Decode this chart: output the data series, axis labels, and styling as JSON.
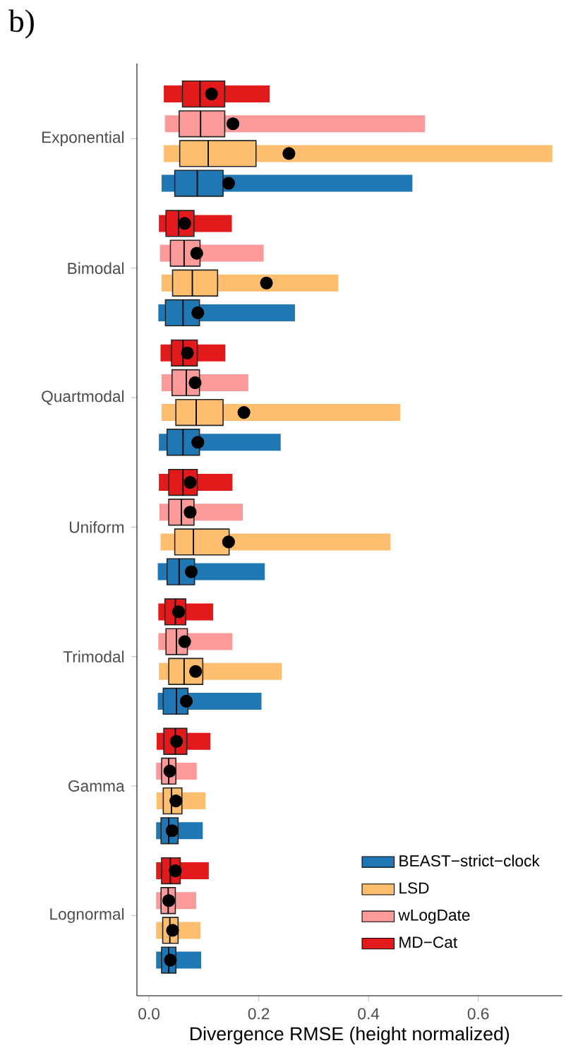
{
  "chart_data": {
    "type": "box",
    "orientation": "horizontal",
    "annotations": [
      "b)"
    ],
    "categories": [
      "Exponential",
      "Bimodal",
      "Quartmodal",
      "Uniform",
      "Trimodal",
      "Gamma",
      "Lognormal"
    ],
    "xlabel": "Divergence RMSE (height normalized)",
    "xlim": [
      -0.022,
      0.753
    ],
    "xticks": [
      {
        "value": 0,
        "label": "0.0"
      },
      {
        "value": 0.2,
        "label": "0.2"
      },
      {
        "value": 0.4,
        "label": "0.4"
      },
      {
        "value": 0.6,
        "label": "0.6"
      }
    ],
    "legend": "bottom right",
    "series": [
      {
        "name": "BEAST−strict−clock",
        "color": "#1f78b4",
        "boxes": [
          {
            "low": 0.023,
            "q1": 0.047,
            "median": 0.088,
            "q3": 0.135,
            "high": 0.48,
            "mean": 0.145
          },
          {
            "low": 0.017,
            "q1": 0.03,
            "median": 0.062,
            "q3": 0.092,
            "high": 0.266,
            "mean": 0.089
          },
          {
            "low": 0.018,
            "q1": 0.033,
            "median": 0.062,
            "q3": 0.092,
            "high": 0.24,
            "mean": 0.089
          },
          {
            "low": 0.016,
            "q1": 0.033,
            "median": 0.055,
            "q3": 0.083,
            "high": 0.211,
            "mean": 0.077
          },
          {
            "low": 0.016,
            "q1": 0.026,
            "median": 0.05,
            "q3": 0.071,
            "high": 0.205,
            "mean": 0.068
          },
          {
            "low": 0.013,
            "q1": 0.022,
            "median": 0.036,
            "q3": 0.053,
            "high": 0.098,
            "mean": 0.042
          },
          {
            "low": 0.013,
            "q1": 0.023,
            "median": 0.036,
            "q3": 0.049,
            "high": 0.095,
            "mean": 0.039
          }
        ]
      },
      {
        "name": "LSD",
        "color": "#fdbf6f",
        "boxes": [
          {
            "low": 0.027,
            "q1": 0.056,
            "median": 0.108,
            "q3": 0.195,
            "high": 0.735,
            "mean": 0.255
          },
          {
            "low": 0.023,
            "q1": 0.043,
            "median": 0.079,
            "q3": 0.125,
            "high": 0.345,
            "mean": 0.214
          },
          {
            "low": 0.023,
            "q1": 0.049,
            "median": 0.086,
            "q3": 0.135,
            "high": 0.458,
            "mean": 0.173
          },
          {
            "low": 0.021,
            "q1": 0.047,
            "median": 0.081,
            "q3": 0.146,
            "high": 0.44,
            "mean": 0.145
          },
          {
            "low": 0.018,
            "q1": 0.036,
            "median": 0.064,
            "q3": 0.098,
            "high": 0.242,
            "mean": 0.085
          },
          {
            "low": 0.014,
            "q1": 0.026,
            "median": 0.041,
            "q3": 0.06,
            "high": 0.103,
            "mean": 0.049
          },
          {
            "low": 0.013,
            "q1": 0.025,
            "median": 0.038,
            "q3": 0.053,
            "high": 0.094,
            "mean": 0.043
          }
        ]
      },
      {
        "name": "wLogDate",
        "color": "#fb9a99",
        "boxes": [
          {
            "low": 0.029,
            "q1": 0.055,
            "median": 0.094,
            "q3": 0.138,
            "high": 0.503,
            "mean": 0.153
          },
          {
            "low": 0.02,
            "q1": 0.039,
            "median": 0.064,
            "q3": 0.093,
            "high": 0.209,
            "mean": 0.087
          },
          {
            "low": 0.023,
            "q1": 0.042,
            "median": 0.068,
            "q3": 0.092,
            "high": 0.181,
            "mean": 0.084
          },
          {
            "low": 0.019,
            "q1": 0.036,
            "median": 0.059,
            "q3": 0.082,
            "high": 0.171,
            "mean": 0.075
          },
          {
            "low": 0.017,
            "q1": 0.031,
            "median": 0.05,
            "q3": 0.07,
            "high": 0.152,
            "mean": 0.065
          },
          {
            "low": 0.013,
            "q1": 0.023,
            "median": 0.036,
            "q3": 0.049,
            "high": 0.087,
            "mean": 0.038
          },
          {
            "low": 0.013,
            "q1": 0.022,
            "median": 0.035,
            "q3": 0.048,
            "high": 0.086,
            "mean": 0.036
          }
        ]
      },
      {
        "name": "MD−Cat",
        "color": "#e31a1c",
        "boxes": [
          {
            "low": 0.027,
            "q1": 0.061,
            "median": 0.093,
            "q3": 0.138,
            "high": 0.22,
            "mean": 0.114
          },
          {
            "low": 0.018,
            "q1": 0.031,
            "median": 0.054,
            "q3": 0.082,
            "high": 0.151,
            "mean": 0.065
          },
          {
            "low": 0.021,
            "q1": 0.041,
            "median": 0.062,
            "q3": 0.088,
            "high": 0.139,
            "mean": 0.07
          },
          {
            "low": 0.018,
            "q1": 0.036,
            "median": 0.062,
            "q3": 0.088,
            "high": 0.152,
            "mean": 0.075
          },
          {
            "low": 0.017,
            "q1": 0.029,
            "median": 0.048,
            "q3": 0.067,
            "high": 0.117,
            "mean": 0.054
          },
          {
            "low": 0.014,
            "q1": 0.027,
            "median": 0.048,
            "q3": 0.069,
            "high": 0.112,
            "mean": 0.05
          },
          {
            "low": 0.013,
            "q1": 0.023,
            "median": 0.039,
            "q3": 0.057,
            "high": 0.109,
            "mean": 0.048
          }
        ]
      }
    ]
  }
}
